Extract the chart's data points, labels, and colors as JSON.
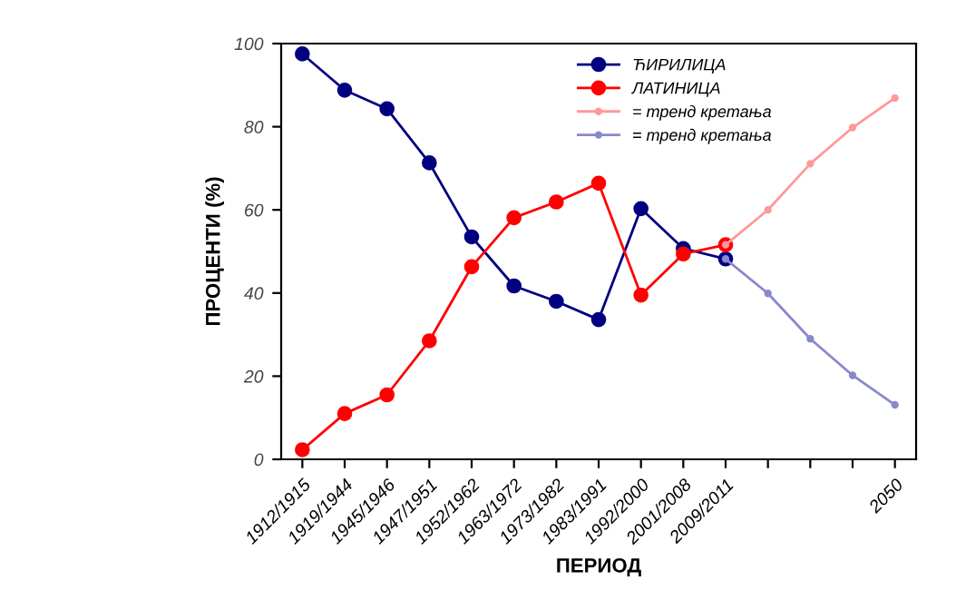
{
  "chart_data": {
    "type": "line",
    "xlabel": "ПЕРИОД",
    "ylabel": "ПРОЦЕНТИ (%)",
    "categories": [
      "1912/1915",
      "1919/1944",
      "1945/1946",
      "1947/1951",
      "1952/1962",
      "1963/1972",
      "1973/1982",
      "1983/1991",
      "1992/2000",
      "2001/2008",
      "2009/2011",
      null,
      null,
      null,
      "2050"
    ],
    "series": [
      {
        "name": "ЋИРИЛИЦА",
        "color": "#000080",
        "marker": "circle",
        "values": [
          97.5,
          88.8,
          84.3,
          71.3,
          53.5,
          41.7,
          38,
          33.6,
          60.3,
          50.7,
          48.2,
          null,
          null,
          null,
          null
        ]
      },
      {
        "name": "ЛАТИНИЦА",
        "color": "#ff0000",
        "marker": "circle",
        "values": [
          2.3,
          11,
          15.5,
          28.5,
          46.3,
          58.1,
          61.9,
          66.4,
          39.5,
          49.4,
          51.6,
          null,
          null,
          null,
          null
        ]
      },
      {
        "name": "= тренд кретања",
        "color": "#ff9999",
        "marker": "circle",
        "values": [
          null,
          null,
          null,
          null,
          null,
          null,
          null,
          null,
          null,
          null,
          51.6,
          60,
          71.1,
          79.8,
          86.9
        ]
      },
      {
        "name": "= тренд кретања",
        "color": "#8888cc",
        "marker": "circle",
        "values": [
          null,
          null,
          null,
          null,
          null,
          null,
          null,
          null,
          null,
          null,
          48.2,
          39.9,
          29,
          20.2,
          13.1
        ]
      }
    ],
    "ylim": [
      0,
      100
    ],
    "yticks": [
      0,
      20,
      40,
      60,
      80,
      100
    ],
    "grid": false,
    "legend": "top",
    "line_style": "solid"
  }
}
